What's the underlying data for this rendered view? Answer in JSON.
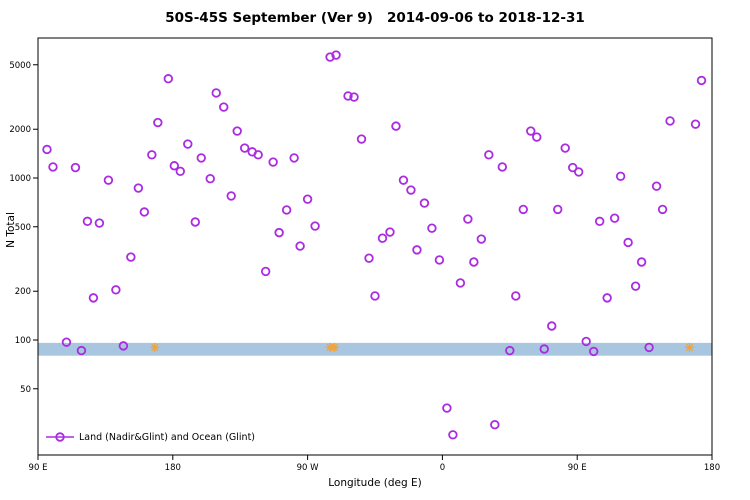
{
  "title": "50S-45S September (Ver 9)   2014-09-06 to 2018-12-31",
  "chart_data": {
    "type": "scatter",
    "title": "50S-45S September (Ver 9)   2014-09-06 to 2018-12-31",
    "xlabel": "Longitude (deg E)",
    "ylabel": "N Total",
    "y_scale": "log",
    "xlim": [
      90,
      540
    ],
    "ylim": [
      20,
      7000
    ],
    "grid": false,
    "y_ticks": [
      50,
      100,
      200,
      500,
      1000,
      2000,
      5000
    ],
    "x_ticks": [
      {
        "lon": 90,
        "label": "90 E"
      },
      {
        "lon": 180,
        "label": "180"
      },
      {
        "lon": 270,
        "label": "90 W"
      },
      {
        "lon": 360,
        "label": "0"
      },
      {
        "lon": 450,
        "label": "90 E"
      },
      {
        "lon": 540,
        "label": "180"
      }
    ],
    "band": {
      "y_low": 80,
      "y_high": 96,
      "color": "#a9c6e0"
    },
    "legend": {
      "label": "Land (Nadir&Glint) and Ocean (Glint)",
      "position": "bottom-left"
    },
    "series": [
      {
        "name": "Land (Nadir&Glint) and Ocean (Glint)",
        "marker": "open-circle",
        "color": "#aa2ce0",
        "points": [
          [
            96,
            1500
          ],
          [
            100,
            1170
          ],
          [
            109,
            97
          ],
          [
            115,
            1160
          ],
          [
            119,
            86
          ],
          [
            123,
            540
          ],
          [
            127,
            182
          ],
          [
            131,
            527
          ],
          [
            137,
            970
          ],
          [
            142,
            204
          ],
          [
            147,
            92
          ],
          [
            152,
            325
          ],
          [
            157,
            867
          ],
          [
            161,
            617
          ],
          [
            166,
            1390
          ],
          [
            170,
            2200
          ],
          [
            177,
            4100
          ],
          [
            181,
            1190
          ],
          [
            185,
            1100
          ],
          [
            190,
            1620
          ],
          [
            195,
            535
          ],
          [
            199,
            1330
          ],
          [
            205,
            990
          ],
          [
            209,
            3350
          ],
          [
            214,
            2740
          ],
          [
            219,
            775
          ],
          [
            223,
            1950
          ],
          [
            228,
            1530
          ],
          [
            233,
            1450
          ],
          [
            237,
            1390
          ],
          [
            242,
            265
          ],
          [
            247,
            1255
          ],
          [
            251,
            460
          ],
          [
            256,
            635
          ],
          [
            261,
            1330
          ],
          [
            265,
            380
          ],
          [
            270,
            740
          ],
          [
            275,
            505
          ],
          [
            285,
            5580
          ],
          [
            289,
            5740
          ],
          [
            297,
            3210
          ],
          [
            301,
            3160
          ],
          [
            306,
            1740
          ],
          [
            311,
            320
          ],
          [
            315,
            187
          ],
          [
            320,
            425
          ],
          [
            325,
            464
          ],
          [
            329,
            2090
          ],
          [
            334,
            970
          ],
          [
            339,
            843
          ],
          [
            343,
            360
          ],
          [
            348,
            700
          ],
          [
            353,
            490
          ],
          [
            358,
            312
          ],
          [
            363,
            38
          ],
          [
            367,
            26
          ],
          [
            372,
            225
          ],
          [
            377,
            558
          ],
          [
            381,
            303
          ],
          [
            386,
            420
          ],
          [
            391,
            1390
          ],
          [
            395,
            30
          ],
          [
            400,
            1170
          ],
          [
            405,
            86
          ],
          [
            409,
            187
          ],
          [
            414,
            640
          ],
          [
            419,
            1950
          ],
          [
            423,
            1790
          ],
          [
            428,
            88
          ],
          [
            433,
            122
          ],
          [
            437,
            640
          ],
          [
            442,
            1530
          ],
          [
            447,
            1160
          ],
          [
            451,
            1090
          ],
          [
            456,
            98
          ],
          [
            461,
            85
          ],
          [
            465,
            540
          ],
          [
            470,
            182
          ],
          [
            475,
            565
          ],
          [
            479,
            1025
          ],
          [
            484,
            400
          ],
          [
            489,
            215
          ],
          [
            493,
            303
          ],
          [
            498,
            90
          ],
          [
            503,
            890
          ],
          [
            507,
            640
          ],
          [
            512,
            2250
          ],
          [
            529,
            2150
          ],
          [
            533,
            4000
          ]
        ]
      },
      {
        "name": "band-markers",
        "marker": "asterisk",
        "color": "#f2a33a",
        "points": [
          [
            168,
            90
          ],
          [
            285,
            90
          ],
          [
            288,
            90
          ],
          [
            525,
            90
          ]
        ]
      }
    ]
  }
}
